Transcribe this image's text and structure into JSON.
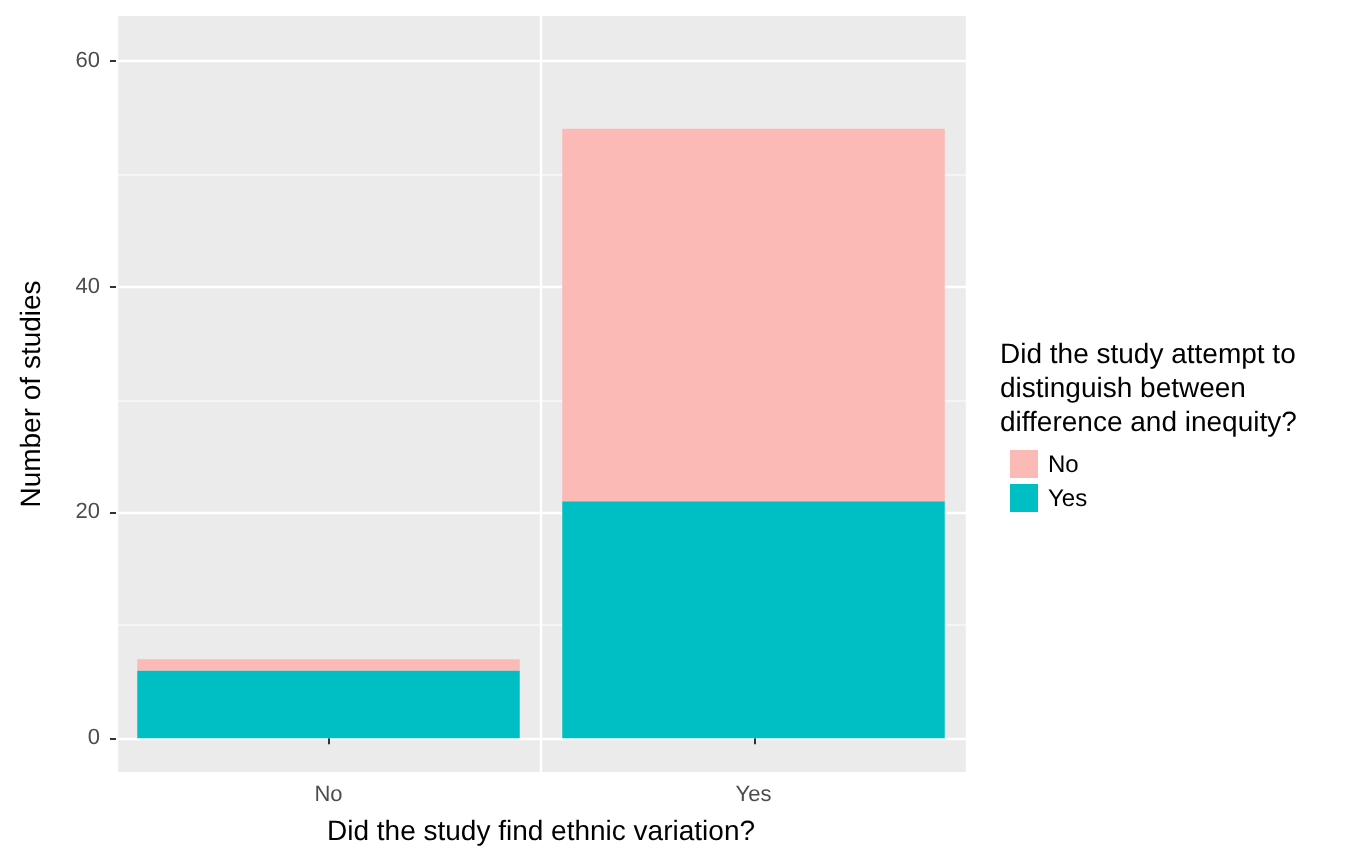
{
  "chart_data": {
    "type": "bar",
    "stacked": true,
    "xlabel": "Did the study find ethnic variation?",
    "ylabel": "Number of studies",
    "legend_title": "Did the study attempt to distinguish between difference and inequity?",
    "categories": [
      "No",
      "Yes"
    ],
    "series": [
      {
        "name": "Yes",
        "color": "#00bfc4",
        "values": [
          6,
          21
        ]
      },
      {
        "name": "No",
        "color": "#fbbab6",
        "values": [
          1,
          33
        ]
      }
    ],
    "ylim": [
      -3,
      64
    ],
    "yticks": [
      0,
      20,
      40,
      60
    ],
    "grid": true,
    "legend": "right"
  }
}
